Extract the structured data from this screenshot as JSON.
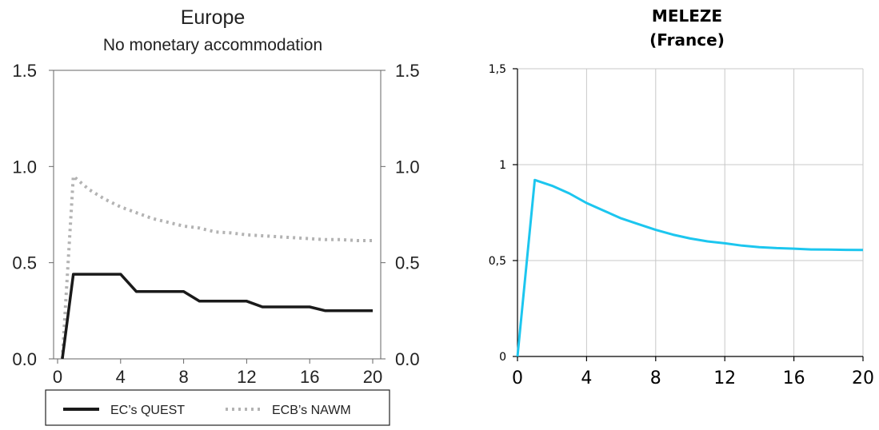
{
  "chart_data": [
    {
      "type": "line",
      "title": "Europe",
      "subtitle": "No monetary accommodation",
      "xlim": [
        0,
        20
      ],
      "ylim": [
        0.0,
        1.5
      ],
      "x_ticks": [
        "0",
        "4",
        "8",
        "12",
        "16",
        "20"
      ],
      "y_ticks": [
        "0.0",
        "0.5",
        "1.0",
        "1.5"
      ],
      "y_ticks_right": [
        "0.0",
        "0.5",
        "1.0",
        "1.5"
      ],
      "grid": false,
      "legend_position": "bottom",
      "series": [
        {
          "name": "EC’s QUEST",
          "color": "#1a1a1a",
          "style": "solid",
          "x": [
            0.3,
            1,
            2,
            3,
            4,
            5,
            6,
            7,
            8,
            9,
            10,
            11,
            12,
            13,
            14,
            15,
            16,
            17,
            18,
            19,
            20
          ],
          "values": [
            0.0,
            0.44,
            0.44,
            0.44,
            0.44,
            0.35,
            0.35,
            0.35,
            0.35,
            0.3,
            0.3,
            0.3,
            0.3,
            0.27,
            0.27,
            0.27,
            0.27,
            0.25,
            0.25,
            0.25,
            0.25
          ]
        },
        {
          "name": "ECB’s NAWM",
          "color": "#b3b3b3",
          "style": "dotted",
          "x": [
            0.3,
            1,
            2,
            3,
            4,
            5,
            6,
            7,
            8,
            9,
            10,
            11,
            12,
            13,
            14,
            15,
            16,
            17,
            18,
            19,
            20
          ],
          "values": [
            0.0,
            0.95,
            0.88,
            0.83,
            0.79,
            0.76,
            0.73,
            0.71,
            0.69,
            0.68,
            0.66,
            0.655,
            0.645,
            0.64,
            0.635,
            0.63,
            0.625,
            0.62,
            0.62,
            0.615,
            0.615
          ]
        }
      ]
    },
    {
      "type": "line",
      "title": "MELEZE",
      "subtitle": "(France)",
      "xlim": [
        0,
        20
      ],
      "ylim": [
        0,
        1.5
      ],
      "x_ticks": [
        "0",
        "4",
        "8",
        "12",
        "16",
        "20"
      ],
      "y_ticks": [
        "0",
        "0,5",
        "1",
        "1,5"
      ],
      "grid": true,
      "series": [
        {
          "color": "#1cc6ef",
          "style": "solid",
          "x": [
            0,
            1,
            2,
            3,
            4,
            5,
            6,
            7,
            8,
            9,
            10,
            11,
            12,
            13,
            14,
            15,
            16,
            17,
            18,
            19,
            20
          ],
          "values": [
            0.0,
            0.92,
            0.89,
            0.85,
            0.8,
            0.76,
            0.72,
            0.69,
            0.66,
            0.635,
            0.615,
            0.6,
            0.59,
            0.578,
            0.57,
            0.565,
            0.562,
            0.558,
            0.557,
            0.556,
            0.555
          ]
        }
      ]
    }
  ]
}
